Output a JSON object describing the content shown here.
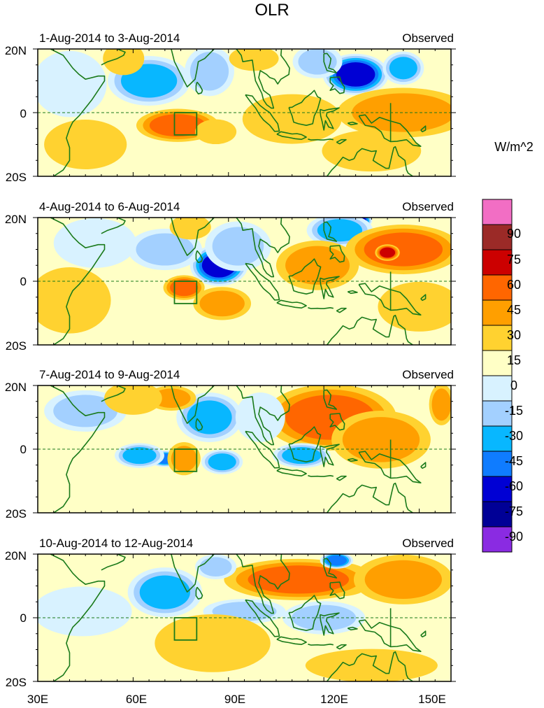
{
  "chart_data": {
    "type": "heatmap",
    "title": "OLR",
    "units_label": "W/m^2",
    "lon_ticks": [
      "30E",
      "60E",
      "90E",
      "120E",
      "150E"
    ],
    "lat_ticks": [
      "20N",
      "0",
      "20S"
    ],
    "lon_range": [
      30,
      160
    ],
    "lat_range": [
      -20,
      20
    ],
    "box": {
      "lon": [
        73,
        80
      ],
      "lat": [
        -7,
        0
      ]
    },
    "colorbar": {
      "levels": [
        "90",
        "75",
        "60",
        "45",
        "30",
        "15",
        "0",
        "-15",
        "-30",
        "-45",
        "-60",
        "-75",
        "-90"
      ],
      "colors": [
        "#f26ec4",
        "#9b2a27",
        "#cc0000",
        "#ff6600",
        "#ff9f00",
        "#ffd230",
        "#ffffc6",
        "#d8f2ff",
        "#a3d0ff",
        "#08b7ff",
        "#0f7cff",
        "#0000d4",
        "#000096",
        "#8a2be2"
      ]
    },
    "panels": [
      {
        "period": "1-Aug-2014 to 3-Aug-2014",
        "label": "Observed",
        "anomalies": [
          {
            "lon": 130,
            "lat": 12,
            "value": -75,
            "rx": 8,
            "ry": 5
          },
          {
            "lon": 145,
            "lat": 14,
            "value": -45,
            "rx": 5,
            "ry": 4
          },
          {
            "lon": 118,
            "lat": 16,
            "value": -30,
            "rx": 6,
            "ry": 4
          },
          {
            "lon": 65,
            "lat": 10,
            "value": -45,
            "rx": 10,
            "ry": 6
          },
          {
            "lon": 84,
            "lat": 13,
            "value": -30,
            "rx": 6,
            "ry": 6
          },
          {
            "lon": 40,
            "lat": 9,
            "value": -15,
            "rx": 9,
            "ry": 8
          },
          {
            "lon": 57,
            "lat": 17,
            "value": 15,
            "rx": 5,
            "ry": 4
          },
          {
            "lon": 98,
            "lat": 17,
            "value": 15,
            "rx": 6,
            "ry": 3
          },
          {
            "lon": 74,
            "lat": -4,
            "value": 45,
            "rx": 10,
            "ry": 4
          },
          {
            "lon": 86,
            "lat": -6,
            "value": 15,
            "rx": 5,
            "ry": 3
          },
          {
            "lon": 145,
            "lat": 0,
            "value": 30,
            "rx": 16,
            "ry": 6
          },
          {
            "lon": 110,
            "lat": -2,
            "value": 15,
            "rx": 12,
            "ry": 6
          },
          {
            "lon": 135,
            "lat": -12,
            "value": 15,
            "rx": 12,
            "ry": 5
          },
          {
            "lon": 45,
            "lat": -10,
            "value": 15,
            "rx": 10,
            "ry": 6
          }
        ]
      },
      {
        "period": "4-Aug-2014 to 6-Aug-2014",
        "label": "Observed",
        "anomalies": [
          {
            "lon": 87,
            "lat": 5,
            "value": -75,
            "rx": 7,
            "ry": 5
          },
          {
            "lon": 93,
            "lat": 11,
            "value": -30,
            "rx": 8,
            "ry": 6
          },
          {
            "lon": 70,
            "lat": 10,
            "value": -30,
            "rx": 9,
            "ry": 5
          },
          {
            "lon": 130,
            "lat": 19,
            "value": -90,
            "rx": 4,
            "ry": 2
          },
          {
            "lon": 125,
            "lat": 16,
            "value": -45,
            "rx": 8,
            "ry": 4
          },
          {
            "lon": 48,
            "lat": 12,
            "value": -15,
            "rx": 10,
            "ry": 6
          },
          {
            "lon": 145,
            "lat": 10,
            "value": 45,
            "rx": 14,
            "ry": 6
          },
          {
            "lon": 140,
            "lat": 9,
            "value": 60,
            "rx": 3,
            "ry": 2
          },
          {
            "lon": 118,
            "lat": 5,
            "value": 30,
            "rx": 10,
            "ry": 6
          },
          {
            "lon": 76,
            "lat": -2,
            "value": 45,
            "rx": 5,
            "ry": 3
          },
          {
            "lon": 88,
            "lat": -7,
            "value": 30,
            "rx": 7,
            "ry": 4
          },
          {
            "lon": 40,
            "lat": -6,
            "value": 15,
            "rx": 10,
            "ry": 8
          },
          {
            "lon": 150,
            "lat": -8,
            "value": 15,
            "rx": 10,
            "ry": 6
          },
          {
            "lon": 78,
            "lat": 17,
            "value": 15,
            "rx": 5,
            "ry": 3
          }
        ]
      },
      {
        "period": "7-Aug-2014 to 9-Aug-2014",
        "label": "Observed",
        "anomalies": [
          {
            "lon": 124,
            "lat": 9,
            "value": 60,
            "rx": 9,
            "ry": 5
          },
          {
            "lon": 125,
            "lat": 9,
            "value": 75,
            "rx": 3,
            "ry": 2
          },
          {
            "lon": 122,
            "lat": 10,
            "value": 45,
            "rx": 16,
            "ry": 8
          },
          {
            "lon": 138,
            "lat": 3,
            "value": 30,
            "rx": 12,
            "ry": 7
          },
          {
            "lon": 86,
            "lat": 8,
            "value": -75,
            "rx": 4,
            "ry": 3
          },
          {
            "lon": 84,
            "lat": 10,
            "value": -45,
            "rx": 8,
            "ry": 6
          },
          {
            "lon": 70,
            "lat": -3,
            "value": -60,
            "rx": 4,
            "ry": 2
          },
          {
            "lon": 62,
            "lat": -2,
            "value": -45,
            "rx": 6,
            "ry": 3
          },
          {
            "lon": 88,
            "lat": -4,
            "value": -45,
            "rx": 5,
            "ry": 3
          },
          {
            "lon": 113,
            "lat": -2,
            "value": -45,
            "rx": 7,
            "ry": 3
          },
          {
            "lon": 100,
            "lat": 10,
            "value": -15,
            "rx": 6,
            "ry": 6
          },
          {
            "lon": 45,
            "lat": 12,
            "value": -30,
            "rx": 10,
            "ry": 5
          },
          {
            "lon": 76,
            "lat": -3,
            "value": 30,
            "rx": 4,
            "ry": 4
          },
          {
            "lon": 72,
            "lat": 16,
            "value": 30,
            "rx": 6,
            "ry": 3
          },
          {
            "lon": 60,
            "lat": 16,
            "value": 15,
            "rx": 7,
            "ry": 4
          },
          {
            "lon": 157,
            "lat": 14,
            "value": 30,
            "rx": 3,
            "ry": 5
          }
        ]
      },
      {
        "period": "10-Aug-2014 to 12-Aug-2014",
        "label": "Observed",
        "anomalies": [
          {
            "lon": 103,
            "lat": 12,
            "value": 60,
            "rx": 8,
            "ry": 4
          },
          {
            "lon": 103,
            "lat": 12,
            "value": 75,
            "rx": 3,
            "ry": 2
          },
          {
            "lon": 126,
            "lat": 12,
            "value": 60,
            "rx": 7,
            "ry": 4
          },
          {
            "lon": 128,
            "lat": 14,
            "value": 75,
            "rx": 3,
            "ry": 2
          },
          {
            "lon": 112,
            "lat": 12,
            "value": 45,
            "rx": 18,
            "ry": 5
          },
          {
            "lon": 145,
            "lat": 12,
            "value": 30,
            "rx": 12,
            "ry": 6
          },
          {
            "lon": 71,
            "lat": 8,
            "value": -75,
            "rx": 5,
            "ry": 3
          },
          {
            "lon": 70,
            "lat": 8,
            "value": -45,
            "rx": 9,
            "ry": 6
          },
          {
            "lon": 86,
            "lat": 16,
            "value": -30,
            "rx": 5,
            "ry": 3
          },
          {
            "lon": 124,
            "lat": 18,
            "value": -60,
            "rx": 4,
            "ry": 2
          },
          {
            "lon": 95,
            "lat": 2,
            "value": -30,
            "rx": 10,
            "ry": 3
          },
          {
            "lon": 120,
            "lat": 0,
            "value": -30,
            "rx": 10,
            "ry": 4
          },
          {
            "lon": 44,
            "lat": 2,
            "value": -15,
            "rx": 12,
            "ry": 6
          },
          {
            "lon": 85,
            "lat": -8,
            "value": 15,
            "rx": 14,
            "ry": 7
          },
          {
            "lon": 135,
            "lat": -15,
            "value": 15,
            "rx": 16,
            "ry": 4
          }
        ]
      }
    ]
  }
}
